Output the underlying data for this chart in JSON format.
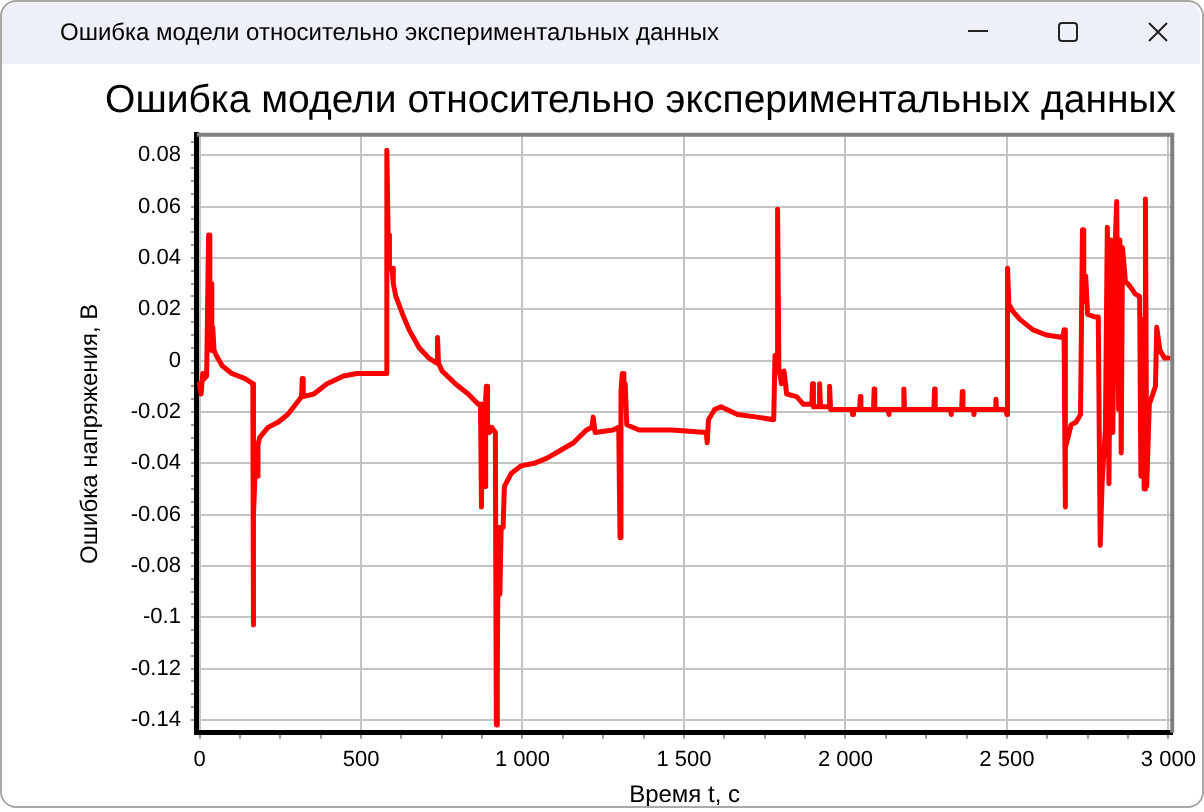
{
  "chart_data": {
    "type": "line",
    "title": "Ошибка модели относительно экспериментальных данных",
    "xlabel": "Время t, с",
    "ylabel": "Ошибка напряжения, В",
    "annotations": [
      "Ошибка модели относительно экспериментальных данных"
    ],
    "x": [
      0,
      5,
      10,
      15,
      22,
      26,
      28,
      32,
      35,
      38,
      41,
      45,
      52,
      70,
      100,
      141,
      165,
      166,
      168,
      173,
      177,
      181,
      186,
      212,
      243,
      273,
      304,
      316,
      318,
      321,
      354,
      395,
      446,
      487,
      578,
      580,
      584,
      588,
      596,
      600,
      608,
      629,
      649,
      680,
      710,
      735,
      737,
      740,
      751,
      792,
      832,
      863,
      870,
      873,
      876,
      880,
      883,
      886,
      888,
      892,
      898,
      905,
      916,
      919,
      922,
      925,
      930,
      934,
      940,
      944,
      965,
      995,
      1036,
      1076,
      1117,
      1158,
      1198,
      1215,
      1219,
      1225,
      1280,
      1298,
      1302,
      1305,
      1309,
      1314,
      1318,
      1323,
      1361,
      1463,
      1569,
      1572,
      1576,
      1595,
      1615,
      1666,
      1727,
      1778,
      1782,
      1786,
      1790,
      1794,
      1802,
      1810,
      1818,
      1849,
      1870,
      1896,
      1898,
      1901,
      1918,
      1920,
      1923,
      1949,
      1951,
      1954,
      2020,
      2022,
      2025,
      2044,
      2046,
      2048,
      2087,
      2089,
      2091,
      2132,
      2134,
      2136,
      2179,
      2181,
      2183,
      2274,
      2276,
      2278,
      2325,
      2327,
      2329,
      2360,
      2362,
      2364,
      2396,
      2398,
      2400,
      2464,
      2466,
      2468,
      2496,
      2500,
      2502,
      2506,
      2520,
      2541,
      2581,
      2622,
      2673,
      2677,
      2679,
      2683,
      2699,
      2714,
      2728,
      2734,
      2738,
      2744,
      2750,
      2775,
      2783,
      2789,
      2795,
      2805,
      2811,
      2816,
      2822,
      2828,
      2834,
      2840,
      2846,
      2850,
      2854,
      2858,
      2867,
      2881,
      2897,
      2911,
      2915,
      2921,
      2925,
      2929,
      2933,
      2941,
      2952,
      2960,
      2964,
      2974,
      2988,
      3000
    ],
    "values": [
      -0.009,
      -0.013,
      -0.005,
      -0.007,
      -0.006,
      -0.006,
      0.049,
      0.006,
      0.03,
      0.004,
      0.013,
      0.004,
      0.002,
      -0.002,
      -0.005,
      -0.007,
      -0.009,
      -0.103,
      -0.06,
      -0.041,
      -0.045,
      -0.033,
      -0.03,
      -0.026,
      -0.024,
      -0.021,
      -0.016,
      -0.014,
      -0.007,
      -0.014,
      -0.013,
      -0.009,
      -0.006,
      -0.005,
      -0.005,
      0.082,
      0.049,
      0.036,
      0.036,
      0.03,
      0.025,
      0.018,
      0.012,
      0.005,
      0.001,
      -0.001,
      0.009,
      -0.001,
      -0.004,
      -0.009,
      -0.013,
      -0.017,
      -0.017,
      -0.057,
      -0.017,
      -0.024,
      -0.049,
      -0.015,
      -0.01,
      -0.028,
      -0.028,
      -0.026,
      -0.028,
      -0.142,
      -0.122,
      -0.065,
      -0.091,
      -0.065,
      -0.065,
      -0.049,
      -0.044,
      -0.041,
      -0.04,
      -0.038,
      -0.035,
      -0.032,
      -0.027,
      -0.026,
      -0.022,
      -0.028,
      -0.027,
      -0.026,
      -0.069,
      -0.012,
      -0.005,
      -0.012,
      -0.009,
      -0.025,
      -0.027,
      -0.027,
      -0.028,
      -0.032,
      -0.023,
      -0.019,
      -0.018,
      -0.021,
      -0.022,
      -0.023,
      0.002,
      -0.001,
      0.059,
      -0.003,
      -0.009,
      -0.004,
      -0.013,
      -0.014,
      -0.017,
      -0.017,
      -0.009,
      -0.018,
      -0.018,
      -0.009,
      -0.018,
      -0.018,
      -0.01,
      -0.019,
      -0.019,
      -0.021,
      -0.019,
      -0.019,
      -0.014,
      -0.019,
      -0.019,
      -0.011,
      -0.019,
      -0.019,
      -0.021,
      -0.019,
      -0.019,
      -0.011,
      -0.019,
      -0.019,
      -0.011,
      -0.019,
      -0.019,
      -0.021,
      -0.019,
      -0.019,
      -0.012,
      -0.019,
      -0.019,
      -0.021,
      -0.019,
      -0.019,
      -0.015,
      -0.019,
      -0.019,
      -0.021,
      0.036,
      0.022,
      0.019,
      0.016,
      0.012,
      0.01,
      0.009,
      0.012,
      -0.057,
      -0.034,
      -0.025,
      -0.024,
      -0.021,
      0.051,
      0.023,
      0.033,
      0.018,
      0.017,
      0.017,
      -0.072,
      -0.047,
      -0.027,
      0.052,
      -0.048,
      0.047,
      -0.028,
      0.041,
      0.062,
      -0.019,
      0.047,
      -0.036,
      0.044,
      0.031,
      0.029,
      0.026,
      0.025,
      -0.045,
      0.016,
      -0.05,
      0.063,
      -0.049,
      -0.017,
      -0.013,
      -0.01,
      0.013,
      0.004,
      0.001,
      0.001
    ],
    "color": "#ff0000",
    "xlim": [
      -8,
      3012
    ],
    "ylim": [
      -0.145,
      0.088
    ],
    "xticks": [
      0,
      {
        "value": 125,
        "label": null
      },
      {
        "value": 250,
        "label": null
      },
      {
        "value": 375,
        "label": null
      },
      500,
      {
        "value": 625,
        "label": null
      },
      {
        "value": 750,
        "label": null
      },
      {
        "value": 875,
        "label": null
      },
      {
        "value": 1000,
        "label": "1 000"
      },
      {
        "value": 1125,
        "label": null
      },
      {
        "value": 1250,
        "label": null
      },
      {
        "value": 1375,
        "label": null
      },
      {
        "value": 1500,
        "label": "1 500"
      },
      {
        "value": 1625,
        "label": null
      },
      {
        "value": 1750,
        "label": null
      },
      {
        "value": 1875,
        "label": null
      },
      {
        "value": 2000,
        "label": "2 000"
      },
      {
        "value": 2125,
        "label": null
      },
      {
        "value": 2250,
        "label": null
      },
      {
        "value": 2375,
        "label": null
      },
      {
        "value": 2500,
        "label": "2 500"
      },
      {
        "value": 2625,
        "label": null
      },
      {
        "value": 2750,
        "label": null
      },
      {
        "value": 2875,
        "label": null
      },
      {
        "value": 3000,
        "label": "3 000"
      }
    ],
    "yticks": [
      -0.14,
      {
        "value": -0.135,
        "label": null
      },
      {
        "value": -0.13,
        "label": null
      },
      {
        "value": -0.125,
        "label": null
      },
      -0.12,
      {
        "value": -0.115,
        "label": null
      },
      {
        "value": -0.11,
        "label": null
      },
      {
        "value": -0.105,
        "label": null
      },
      -0.1,
      {
        "value": -0.095,
        "label": null
      },
      {
        "value": -0.09,
        "label": null
      },
      {
        "value": -0.085,
        "label": null
      },
      -0.08,
      {
        "value": -0.075,
        "label": null
      },
      {
        "value": -0.07,
        "label": null
      },
      {
        "value": -0.065,
        "label": null
      },
      -0.06,
      {
        "value": -0.055,
        "label": null
      },
      {
        "value": -0.05,
        "label": null
      },
      {
        "value": -0.045,
        "label": null
      },
      -0.04,
      {
        "value": -0.035,
        "label": null
      },
      {
        "value": -0.03,
        "label": null
      },
      {
        "value": -0.025,
        "label": null
      },
      -0.02,
      {
        "value": -0.015,
        "label": null
      },
      {
        "value": -0.01,
        "label": null
      },
      {
        "value": -0.005,
        "label": null
      },
      0,
      {
        "value": 0.005,
        "label": null
      },
      {
        "value": 0.01,
        "label": null
      },
      {
        "value": 0.015,
        "label": null
      },
      0.02,
      {
        "value": 0.025,
        "label": null
      },
      {
        "value": 0.03,
        "label": null
      },
      {
        "value": 0.035,
        "label": null
      },
      0.04,
      {
        "value": 0.045,
        "label": null
      },
      {
        "value": 0.05,
        "label": null
      },
      {
        "value": 0.055,
        "label": null
      },
      0.06,
      {
        "value": 0.065,
        "label": null
      },
      {
        "value": 0.07,
        "label": null
      },
      {
        "value": 0.075,
        "label": null
      },
      0.08,
      {
        "value": 0.085,
        "label": null
      }
    ],
    "grid": true
  }
}
